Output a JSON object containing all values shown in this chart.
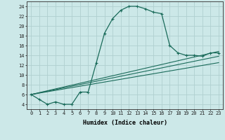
{
  "xlabel": "Humidex (Indice chaleur)",
  "bg_color": "#cce8e8",
  "grid_color": "#b0d0d0",
  "line_color": "#1a6b5a",
  "curve1_x": [
    0,
    1,
    2,
    3,
    4,
    5,
    6,
    7,
    8,
    9,
    10,
    11,
    12,
    13,
    14,
    15,
    16,
    17,
    18,
    19,
    20,
    21,
    22,
    23
  ],
  "curve1_y": [
    6,
    5,
    4,
    4.5,
    4,
    4,
    6.5,
    6.5,
    12.5,
    18.5,
    21.5,
    23.2,
    24,
    24,
    23.5,
    22.8,
    22.5,
    16,
    14.5,
    14,
    14,
    13.8,
    14.5,
    14.5
  ],
  "straight_lines": [
    {
      "x": [
        0,
        23
      ],
      "y": [
        6,
        14.8
      ]
    },
    {
      "x": [
        0,
        23
      ],
      "y": [
        6,
        13.8
      ]
    },
    {
      "x": [
        0,
        23
      ],
      "y": [
        6,
        12.5
      ]
    }
  ],
  "xlim": [
    -0.5,
    23.5
  ],
  "ylim": [
    3,
    25
  ],
  "yticks": [
    4,
    6,
    8,
    10,
    12,
    14,
    16,
    18,
    20,
    22,
    24
  ],
  "xticks": [
    0,
    1,
    2,
    3,
    4,
    5,
    6,
    7,
    8,
    9,
    10,
    11,
    12,
    13,
    14,
    15,
    16,
    17,
    18,
    19,
    20,
    21,
    22,
    23
  ]
}
